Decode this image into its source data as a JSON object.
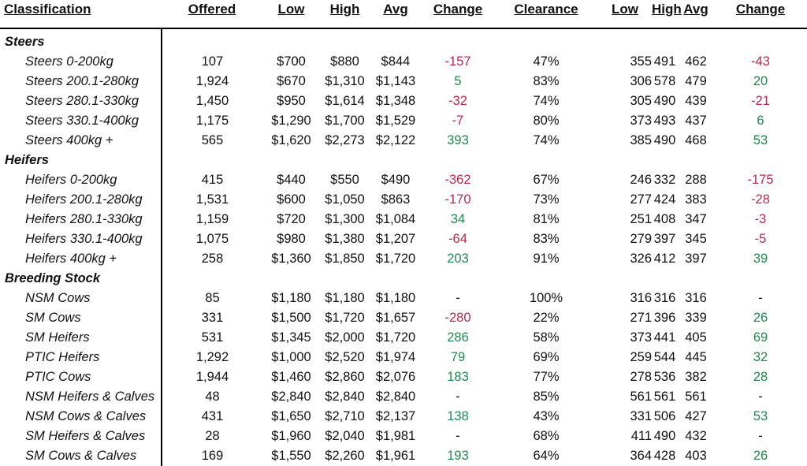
{
  "headers": [
    "Classification",
    "Offered",
    "Low",
    "High",
    "Avg",
    "Change",
    "Clearance",
    "Low",
    "High",
    "Avg",
    "Change"
  ],
  "colors": {
    "negative": "#c0254a",
    "positive": "#1f8a4c",
    "neutral": "#111111"
  },
  "groups": [
    {
      "name": "Steers",
      "rows": [
        {
          "classification": "Steers 0-200kg",
          "offered": "107",
          "low": "$700",
          "high": "$880",
          "avg": "$844",
          "change": "-157",
          "change_dir": "neg",
          "clearance": "47%",
          "low2": "355",
          "high2": "491",
          "avg2": "462",
          "change2": "-43",
          "change2_dir": "neg"
        },
        {
          "classification": "Steers 200.1-280kg",
          "offered": "1,924",
          "low": "$670",
          "high": "$1,310",
          "avg": "$1,143",
          "change": "5",
          "change_dir": "pos",
          "clearance": "83%",
          "low2": "306",
          "high2": "578",
          "avg2": "479",
          "change2": "20",
          "change2_dir": "pos"
        },
        {
          "classification": "Steers 280.1-330kg",
          "offered": "1,450",
          "low": "$950",
          "high": "$1,614",
          "avg": "$1,348",
          "change": "-32",
          "change_dir": "neg",
          "clearance": "74%",
          "low2": "305",
          "high2": "490",
          "avg2": "439",
          "change2": "-21",
          "change2_dir": "neg"
        },
        {
          "classification": "Steers 330.1-400kg",
          "offered": "1,175",
          "low": "$1,290",
          "high": "$1,700",
          "avg": "$1,529",
          "change": "-7",
          "change_dir": "neg",
          "clearance": "80%",
          "low2": "373",
          "high2": "493",
          "avg2": "437",
          "change2": "6",
          "change2_dir": "pos"
        },
        {
          "classification": "Steers 400kg +",
          "offered": "565",
          "low": "$1,620",
          "high": "$2,273",
          "avg": "$2,122",
          "change": "393",
          "change_dir": "pos",
          "clearance": "74%",
          "low2": "385",
          "high2": "490",
          "avg2": "468",
          "change2": "53",
          "change2_dir": "pos"
        }
      ]
    },
    {
      "name": "Heifers",
      "rows": [
        {
          "classification": "Heifers 0-200kg",
          "offered": "415",
          "low": "$440",
          "high": "$550",
          "avg": "$490",
          "change": "-362",
          "change_dir": "neg",
          "clearance": "67%",
          "low2": "246",
          "high2": "332",
          "avg2": "288",
          "change2": "-175",
          "change2_dir": "neg"
        },
        {
          "classification": "Heifers 200.1-280kg",
          "offered": "1,531",
          "low": "$600",
          "high": "$1,050",
          "avg": "$863",
          "change": "-170",
          "change_dir": "neg",
          "clearance": "73%",
          "low2": "277",
          "high2": "424",
          "avg2": "383",
          "change2": "-28",
          "change2_dir": "neg"
        },
        {
          "classification": "Heifers 280.1-330kg",
          "offered": "1,159",
          "low": "$720",
          "high": "$1,300",
          "avg": "$1,084",
          "change": "34",
          "change_dir": "pos",
          "clearance": "81%",
          "low2": "251",
          "high2": "408",
          "avg2": "347",
          "change2": "-3",
          "change2_dir": "neg"
        },
        {
          "classification": "Heifers 330.1-400kg",
          "offered": "1,075",
          "low": "$980",
          "high": "$1,380",
          "avg": "$1,207",
          "change": "-64",
          "change_dir": "neg",
          "clearance": "83%",
          "low2": "279",
          "high2": "397",
          "avg2": "345",
          "change2": "-5",
          "change2_dir": "neg"
        },
        {
          "classification": "Heifers 400kg +",
          "offered": "258",
          "low": "$1,360",
          "high": "$1,850",
          "avg": "$1,720",
          "change": "203",
          "change_dir": "pos",
          "clearance": "91%",
          "low2": "326",
          "high2": "412",
          "avg2": "397",
          "change2": "39",
          "change2_dir": "pos"
        }
      ]
    },
    {
      "name": "Breeding Stock",
      "rows": [
        {
          "classification": "NSM Cows",
          "offered": "85",
          "low": "$1,180",
          "high": "$1,180",
          "avg": "$1,180",
          "change": "-",
          "change_dir": "neu",
          "clearance": "100%",
          "low2": "316",
          "high2": "316",
          "avg2": "316",
          "change2": "-",
          "change2_dir": "neu"
        },
        {
          "classification": "SM Cows",
          "offered": "331",
          "low": "$1,500",
          "high": "$1,720",
          "avg": "$1,657",
          "change": "-280",
          "change_dir": "neg",
          "clearance": "22%",
          "low2": "271",
          "high2": "396",
          "avg2": "339",
          "change2": "26",
          "change2_dir": "pos"
        },
        {
          "classification": "SM Heifers",
          "offered": "531",
          "low": "$1,345",
          "high": "$2,000",
          "avg": "$1,720",
          "change": "286",
          "change_dir": "pos",
          "clearance": "58%",
          "low2": "373",
          "high2": "441",
          "avg2": "405",
          "change2": "69",
          "change2_dir": "pos"
        },
        {
          "classification": "PTIC Heifers",
          "offered": "1,292",
          "low": "$1,000",
          "high": "$2,520",
          "avg": "$1,974",
          "change": "79",
          "change_dir": "pos",
          "clearance": "69%",
          "low2": "259",
          "high2": "544",
          "avg2": "445",
          "change2": "32",
          "change2_dir": "pos"
        },
        {
          "classification": "PTIC Cows",
          "offered": "1,944",
          "low": "$1,460",
          "high": "$2,860",
          "avg": "$2,076",
          "change": "183",
          "change_dir": "pos",
          "clearance": "77%",
          "low2": "278",
          "high2": "536",
          "avg2": "382",
          "change2": "28",
          "change2_dir": "pos"
        },
        {
          "classification": "NSM Heifers & Calves",
          "offered": "48",
          "low": "$2,840",
          "high": "$2,840",
          "avg": "$2,840",
          "change": "-",
          "change_dir": "neu",
          "clearance": "85%",
          "low2": "561",
          "high2": "561",
          "avg2": "561",
          "change2": "-",
          "change2_dir": "neu"
        },
        {
          "classification": "NSM Cows & Calves",
          "offered": "431",
          "low": "$1,650",
          "high": "$2,710",
          "avg": "$2,137",
          "change": "138",
          "change_dir": "pos",
          "clearance": "43%",
          "low2": "331",
          "high2": "506",
          "avg2": "427",
          "change2": "53",
          "change2_dir": "pos"
        },
        {
          "classification": "SM Heifers & Calves",
          "offered": "28",
          "low": "$1,960",
          "high": "$2,040",
          "avg": "$1,981",
          "change": "-",
          "change_dir": "neu",
          "clearance": "68%",
          "low2": "411",
          "high2": "490",
          "avg2": "432",
          "change2": "-",
          "change2_dir": "neu"
        },
        {
          "classification": "SM Cows & Calves",
          "offered": "169",
          "low": "$1,550",
          "high": "$2,260",
          "avg": "$1,961",
          "change": "193",
          "change_dir": "pos",
          "clearance": "64%",
          "low2": "364",
          "high2": "428",
          "avg2": "403",
          "change2": "26",
          "change2_dir": "pos"
        }
      ]
    }
  ]
}
